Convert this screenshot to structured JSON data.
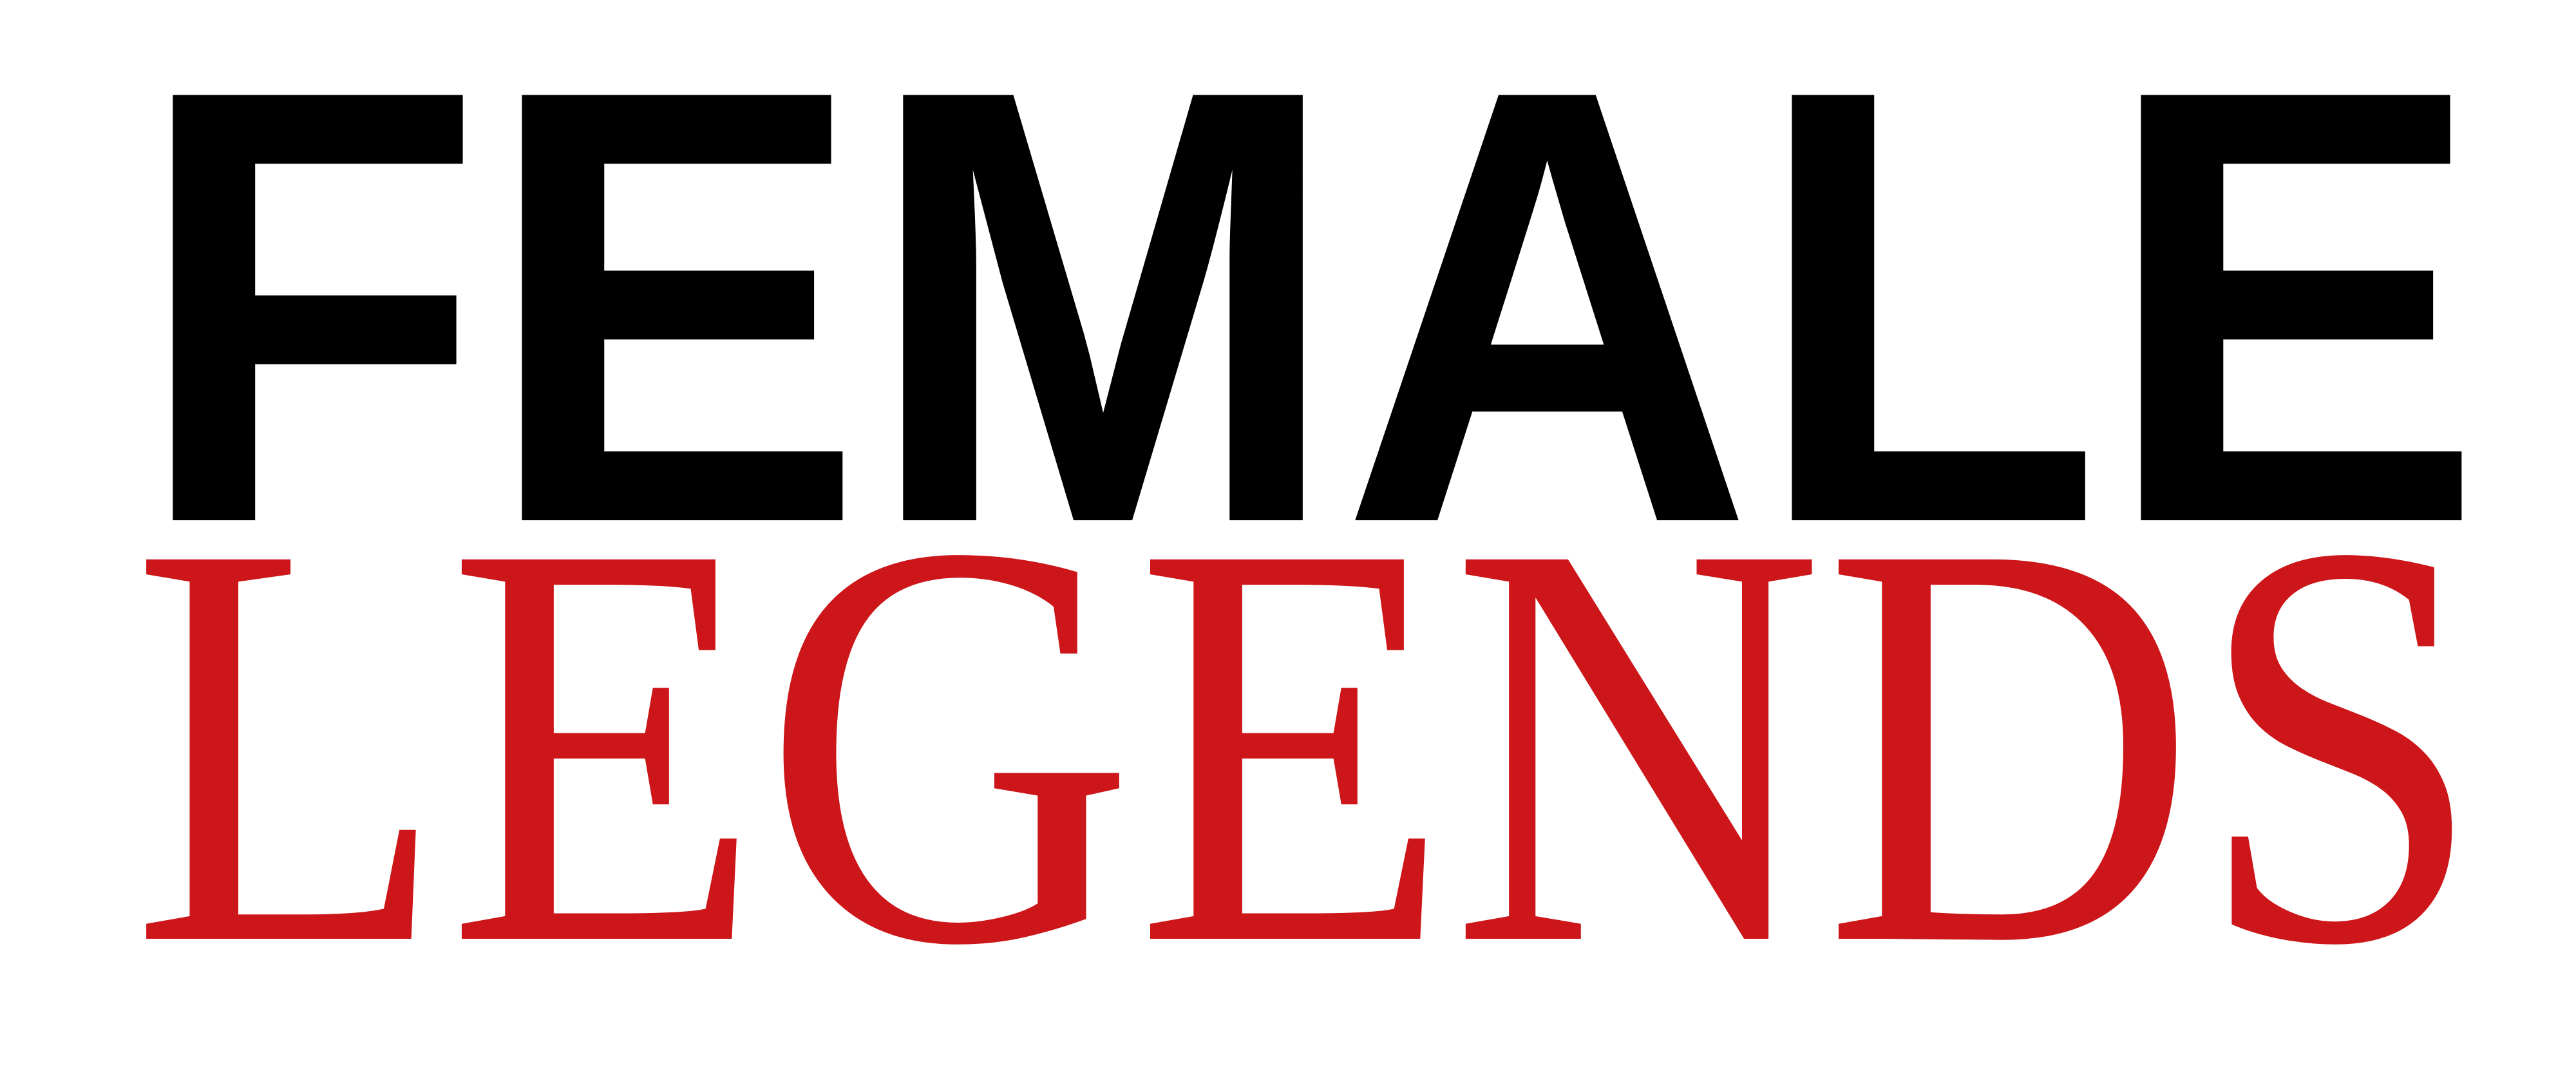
{
  "logo": {
    "line1": "FEMALE",
    "line2": "LEGENDS"
  }
}
